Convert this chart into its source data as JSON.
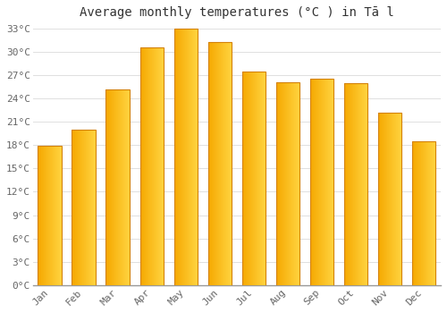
{
  "months": [
    "Jan",
    "Feb",
    "Mar",
    "Apr",
    "May",
    "Jun",
    "Jul",
    "Aug",
    "Sep",
    "Oct",
    "Nov",
    "Dec"
  ],
  "temperatures": [
    17.9,
    20.0,
    25.2,
    30.5,
    33.0,
    31.2,
    27.5,
    26.1,
    26.5,
    26.0,
    22.2,
    18.5
  ],
  "title": "Average monthly temperatures (°C ) in Tā l",
  "bar_color_left": "#F5A800",
  "bar_color_right": "#FFD440",
  "bar_edge_color": "#D4820A",
  "background_color": "#FFFFFF",
  "grid_color": "#E0E0E0",
  "ytick_min": 0,
  "ytick_max": 33,
  "ytick_step": 3,
  "title_fontsize": 10,
  "tick_fontsize": 8,
  "font_family": "monospace"
}
